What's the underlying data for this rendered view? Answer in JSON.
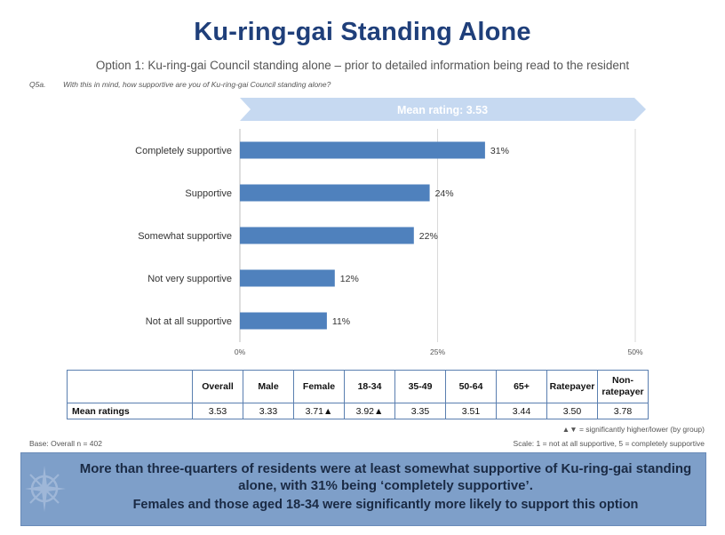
{
  "title": "Ku-ring-gai Standing Alone",
  "subtitle": "Option 1: Ku-ring-gai Council standing alone – prior to detailed information being read to the resident",
  "question": {
    "id": "Q5a.",
    "text": "With this in mind, how supportive are you of Ku-ring-gai Council standing alone?"
  },
  "mean_banner": "Mean rating: 3.53",
  "chart_data": {
    "type": "bar",
    "orientation": "horizontal",
    "categories": [
      "Completely supportive",
      "Supportive",
      "Somewhat supportive",
      "Not very supportive",
      "Not at all supportive"
    ],
    "values": [
      31,
      24,
      22,
      12,
      11
    ],
    "value_labels": [
      "31%",
      "24%",
      "22%",
      "12%",
      "11%"
    ],
    "xlim": [
      0,
      50
    ],
    "xticks": [
      0,
      25,
      50
    ],
    "xtick_labels": [
      "0%",
      "25%",
      "50%"
    ],
    "grid": true,
    "bar_color": "#4f81bd"
  },
  "table": {
    "headers": [
      "",
      "Overall",
      "Male",
      "Female",
      "18-34",
      "35-49",
      "50-64",
      "65+",
      "Ratepayer",
      "Non-\nratepayer"
    ],
    "row_label": "Mean ratings",
    "values": [
      "3.53",
      "3.33",
      "3.71▲",
      "3.92▲",
      "3.35",
      "3.51",
      "3.44",
      "3.50",
      "3.78"
    ]
  },
  "sig_note": "▲▼ = significantly higher/lower (by group)",
  "base_note": "Base: Overall n = 402",
  "scale_note": "Scale: 1 = not at all supportive, 5 = completely supportive",
  "callout": {
    "line1": "More than three-quarters of residents were at least somewhat supportive of Ku-ring-gai standing alone, with 31% being ‘completely supportive’.",
    "line2": "Females and those aged 18-34 were significantly more likely to support this option"
  },
  "colors": {
    "title": "#1f3f7a",
    "bar": "#4f81bd",
    "banner": "#c6d9f1",
    "callout_bg": "#7e9fc9"
  },
  "icons": {
    "callout": "compass-icon"
  }
}
